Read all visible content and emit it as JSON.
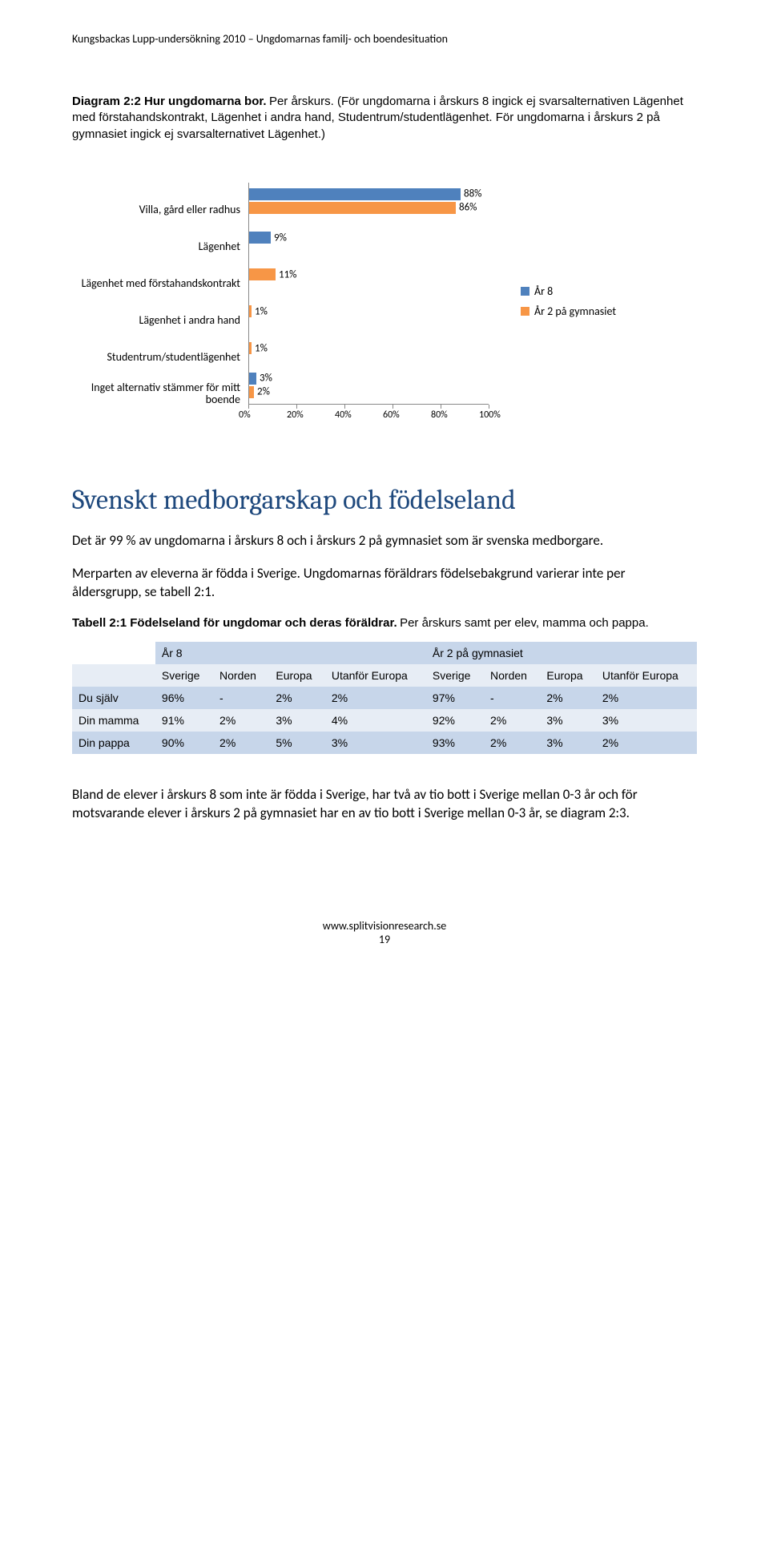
{
  "header": "Kungsbackas Lupp-undersökning 2010 – Ungdomarnas familj- och boendesituation",
  "diagram": {
    "caption_bold": "Diagram 2:2 Hur ungdomarna bor.",
    "caption_rest": " Per årskurs. (För ungdomarna i årskurs 8 ingick ej svarsalternativen Lägenhet med förstahandskontrakt, Lägenhet i andra hand, Studentrum/studentlägenhet. För ungdomarna i årskurs 2 på gymnasiet ingick ej svarsalternativet Lägenhet.)",
    "type": "bar",
    "xlim": [
      0,
      100
    ],
    "xticks": [
      "0%",
      "20%",
      "40%",
      "60%",
      "80%",
      "100%"
    ],
    "label_fontsize": 14,
    "grid_color": "#888888",
    "series": [
      {
        "name": "År 8",
        "color": "#4f81bd"
      },
      {
        "name": "År 2 på gymnasiet",
        "color": "#f79646"
      }
    ],
    "rows": [
      {
        "label": "Villa, gård eller radhus",
        "values": {
          "ar8": 88,
          "ar2": 86
        }
      },
      {
        "label": "Lägenhet",
        "values": {
          "ar8": 9,
          "ar2": null
        }
      },
      {
        "label": "Lägenhet med förstahandskontrakt",
        "values": {
          "ar8": null,
          "ar2": 11
        }
      },
      {
        "label": "Lägenhet i andra hand",
        "values": {
          "ar8": null,
          "ar2": 1
        }
      },
      {
        "label": "Studentrum/studentlägenhet",
        "values": {
          "ar8": null,
          "ar2": 1
        }
      },
      {
        "label": "Inget alternativ stämmer för mitt boende",
        "values": {
          "ar8": 3,
          "ar2": 2
        }
      }
    ]
  },
  "section_title": "Svenskt medborgarskap och födelseland",
  "body_p1": "Det är 99 % av ungdomarna i årskurs 8 och i årskurs 2 på gymnasiet som är svenska medborgare.",
  "body_p2": "Merparten av eleverna är födda i Sverige. Ungdomarnas föräldrars födelsebakgrund varierar inte per åldersgrupp, se tabell 2:1.",
  "table": {
    "caption_bold": "Tabell 2:1 Födelseland för ungdomar och deras föräldrar.",
    "caption_rest": " Per årskurs samt per elev, mamma och pappa.",
    "group_headers": [
      "År 8",
      "År 2 på gymnasiet"
    ],
    "columns": [
      "Sverige",
      "Norden",
      "Europa",
      "Utanför Europa",
      "Sverige",
      "Norden",
      "Europa",
      "Utanför Europa"
    ],
    "header_bg": "#c7d6ea",
    "row_alt_bg": "#e7edf5",
    "rows": [
      {
        "label": "Du själv",
        "cells": [
          "96%",
          "-",
          "2%",
          "2%",
          "97%",
          "-",
          "2%",
          "2%"
        ]
      },
      {
        "label": "Din mamma",
        "cells": [
          "91%",
          "2%",
          "3%",
          "4%",
          "92%",
          "2%",
          "3%",
          "3%"
        ]
      },
      {
        "label": "Din pappa",
        "cells": [
          "90%",
          "2%",
          "5%",
          "3%",
          "93%",
          "2%",
          "3%",
          "2%"
        ]
      }
    ]
  },
  "body_p3": "Bland de elever i årskurs 8 som inte är födda i Sverige, har två av tio bott i Sverige mellan 0-3 år och för motsvarande elever i årskurs 2 på gymnasiet har en av tio bott i Sverige mellan 0-3 år, se diagram 2:3.",
  "footer_url": "www.splitvisionresearch.se",
  "footer_page": "19"
}
